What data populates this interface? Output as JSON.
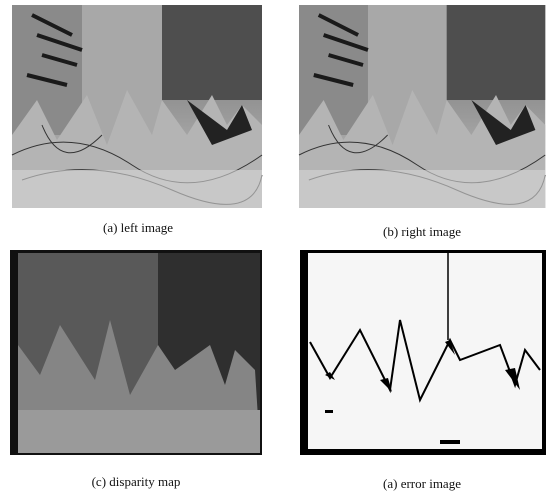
{
  "figure": {
    "panels": [
      {
        "caption": "(a) left image"
      },
      {
        "caption": "(b) right image"
      },
      {
        "caption": "(c) disparity map"
      },
      {
        "caption": "(a) error image"
      }
    ]
  }
}
